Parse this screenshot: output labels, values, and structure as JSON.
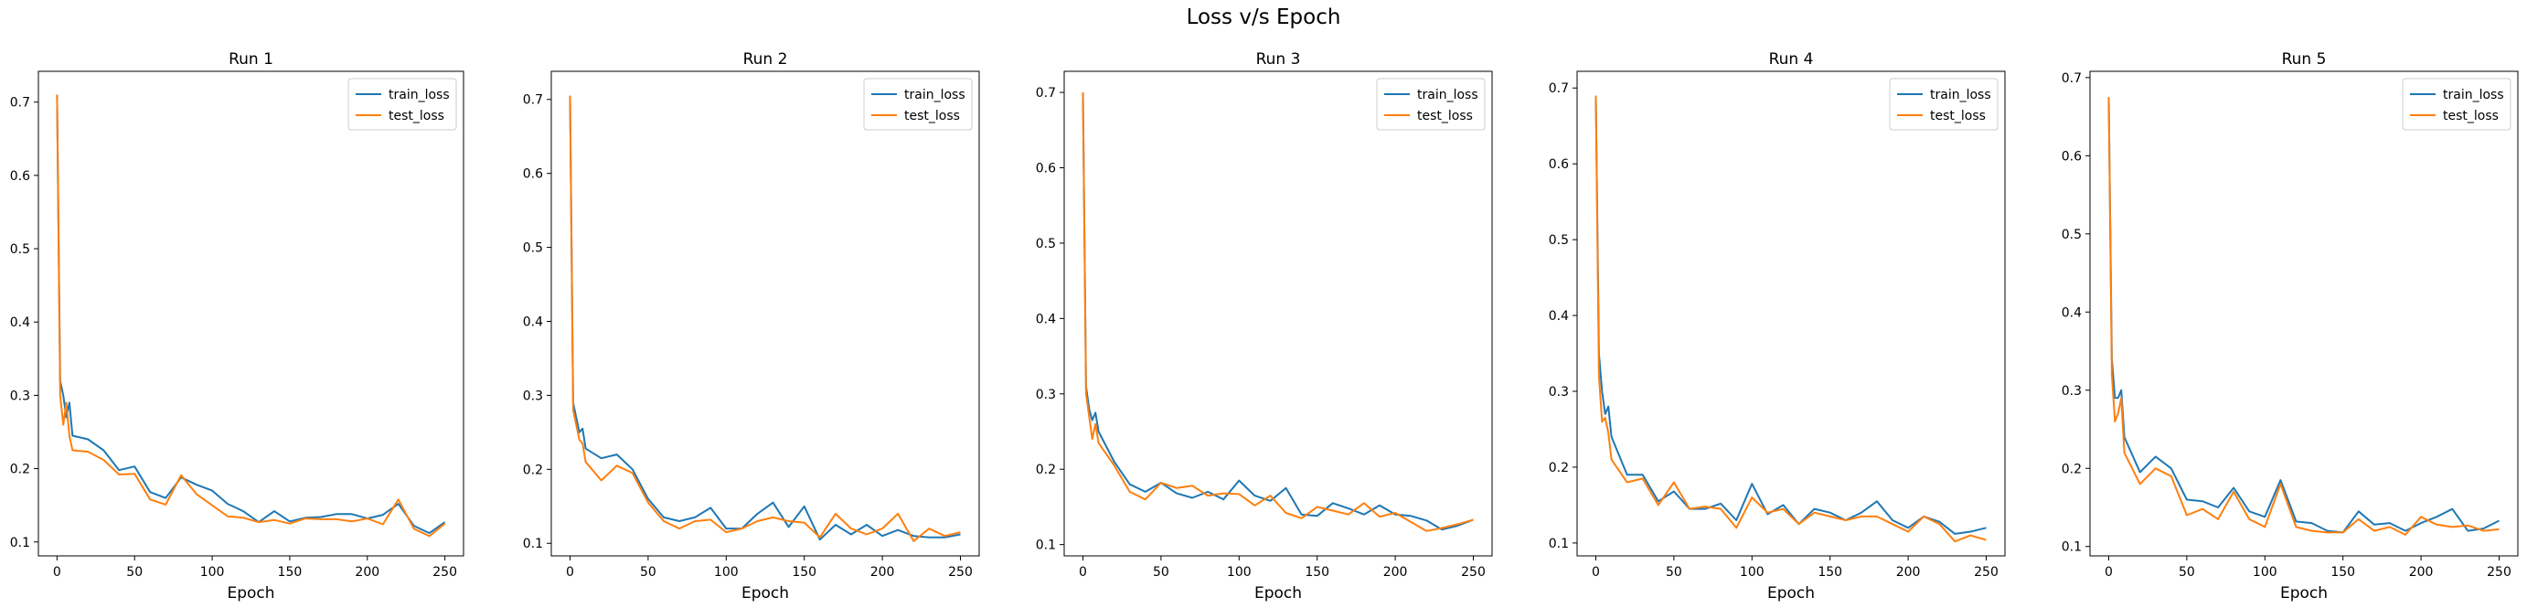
{
  "figure": {
    "title": "Loss v/s Epoch"
  },
  "legend": {
    "position": "upper right"
  },
  "colors": {
    "train_loss": "#1f77b4",
    "test_loss": "#ff7f0e"
  },
  "chart_data": [
    {
      "type": "line",
      "title": "Run 1",
      "xlabel": "Epoch",
      "ylabel": "",
      "xlim": [
        -12,
        262
      ],
      "ylim": [
        0.081,
        0.742
      ],
      "xticks": [
        "0",
        "50",
        "100",
        "150",
        "200",
        "250"
      ],
      "xtick_values": [
        0,
        50,
        100,
        150,
        200,
        250
      ],
      "yticks": [
        "0.1",
        "0.2",
        "0.3",
        "0.4",
        "0.5",
        "0.6",
        "0.7"
      ],
      "ytick_values": [
        0.1,
        0.2,
        0.3,
        0.4,
        0.5,
        0.6,
        0.7
      ],
      "grid": false,
      "x": [
        0,
        2,
        4,
        6,
        8,
        10,
        20,
        30,
        40,
        50,
        60,
        70,
        80,
        90,
        100,
        110,
        120,
        130,
        140,
        150,
        160,
        170,
        180,
        190,
        200,
        210,
        220,
        230,
        240,
        250
      ],
      "series": [
        {
          "name": "train_loss",
          "values": [
            0.71,
            0.32,
            0.3,
            0.27,
            0.29,
            0.245,
            0.24,
            0.225,
            0.198,
            0.203,
            0.168,
            0.16,
            0.188,
            0.178,
            0.17,
            0.152,
            0.142,
            0.127,
            0.142,
            0.128,
            0.133,
            0.134,
            0.138,
            0.138,
            0.132,
            0.137,
            0.152,
            0.122,
            0.112,
            0.127
          ]
        },
        {
          "name": "test_loss",
          "values": [
            0.71,
            0.3,
            0.26,
            0.29,
            0.245,
            0.225,
            0.223,
            0.212,
            0.192,
            0.193,
            0.158,
            0.151,
            0.191,
            0.165,
            0.15,
            0.135,
            0.133,
            0.127,
            0.13,
            0.125,
            0.132,
            0.131,
            0.131,
            0.128,
            0.132,
            0.124,
            0.158,
            0.118,
            0.108,
            0.125
          ]
        }
      ]
    },
    {
      "type": "line",
      "title": "Run 2",
      "xlabel": "Epoch",
      "ylabel": "",
      "xlim": [
        -12,
        262
      ],
      "ylim": [
        0.083,
        0.738
      ],
      "xticks": [
        "0",
        "50",
        "100",
        "150",
        "200",
        "250"
      ],
      "xtick_values": [
        0,
        50,
        100,
        150,
        200,
        250
      ],
      "yticks": [
        "0.1",
        "0.2",
        "0.3",
        "0.4",
        "0.5",
        "0.6",
        "0.7"
      ],
      "ytick_values": [
        0.1,
        0.2,
        0.3,
        0.4,
        0.5,
        0.6,
        0.7
      ],
      "grid": false,
      "x": [
        0,
        2,
        4,
        6,
        8,
        10,
        20,
        30,
        40,
        50,
        60,
        70,
        80,
        90,
        100,
        110,
        120,
        130,
        140,
        150,
        160,
        170,
        180,
        190,
        200,
        210,
        220,
        230,
        240,
        250
      ],
      "series": [
        {
          "name": "train_loss",
          "values": [
            0.705,
            0.29,
            0.27,
            0.25,
            0.255,
            0.228,
            0.215,
            0.22,
            0.2,
            0.16,
            0.135,
            0.13,
            0.135,
            0.148,
            0.12,
            0.12,
            0.14,
            0.155,
            0.122,
            0.15,
            0.105,
            0.125,
            0.112,
            0.125,
            0.11,
            0.118,
            0.11,
            0.108,
            0.108,
            0.112
          ]
        },
        {
          "name": "test_loss",
          "values": [
            0.705,
            0.28,
            0.26,
            0.24,
            0.235,
            0.21,
            0.185,
            0.205,
            0.195,
            0.155,
            0.13,
            0.12,
            0.13,
            0.132,
            0.115,
            0.12,
            0.13,
            0.135,
            0.13,
            0.128,
            0.108,
            0.14,
            0.12,
            0.112,
            0.12,
            0.14,
            0.103,
            0.12,
            0.11,
            0.115
          ]
        }
      ]
    },
    {
      "type": "line",
      "title": "Run 3",
      "xlabel": "Epoch",
      "ylabel": "",
      "xlim": [
        -12,
        262
      ],
      "ylim": [
        0.085,
        0.728
      ],
      "xticks": [
        "0",
        "50",
        "100",
        "150",
        "200",
        "250"
      ],
      "xtick_values": [
        0,
        50,
        100,
        150,
        200,
        250
      ],
      "yticks": [
        "0.1",
        "0.2",
        "0.3",
        "0.4",
        "0.5",
        "0.6",
        "0.7"
      ],
      "ytick_values": [
        0.1,
        0.2,
        0.3,
        0.4,
        0.5,
        0.6,
        0.7
      ],
      "grid": false,
      "x": [
        0,
        2,
        4,
        6,
        8,
        10,
        20,
        30,
        40,
        50,
        60,
        70,
        80,
        90,
        100,
        110,
        120,
        130,
        140,
        150,
        160,
        170,
        180,
        190,
        200,
        210,
        220,
        230,
        240,
        250
      ],
      "series": [
        {
          "name": "train_loss",
          "values": [
            0.7,
            0.31,
            0.28,
            0.265,
            0.275,
            0.25,
            0.21,
            0.18,
            0.17,
            0.182,
            0.168,
            0.162,
            0.17,
            0.16,
            0.185,
            0.165,
            0.158,
            0.175,
            0.14,
            0.138,
            0.155,
            0.148,
            0.14,
            0.152,
            0.14,
            0.138,
            0.132,
            0.12,
            0.125,
            0.133
          ]
        },
        {
          "name": "test_loss",
          "values": [
            0.7,
            0.3,
            0.27,
            0.24,
            0.26,
            0.235,
            0.205,
            0.17,
            0.16,
            0.182,
            0.175,
            0.178,
            0.165,
            0.168,
            0.167,
            0.152,
            0.165,
            0.142,
            0.135,
            0.15,
            0.145,
            0.14,
            0.155,
            0.137,
            0.142,
            0.13,
            0.118,
            0.122,
            0.127,
            0.133
          ]
        }
      ]
    },
    {
      "type": "line",
      "title": "Run 4",
      "xlabel": "Epoch",
      "ylabel": "",
      "xlim": [
        -12,
        262
      ],
      "ylim": [
        0.083,
        0.722
      ],
      "xticks": [
        "0",
        "50",
        "100",
        "150",
        "200",
        "250"
      ],
      "xtick_values": [
        0,
        50,
        100,
        150,
        200,
        250
      ],
      "yticks": [
        "0.1",
        "0.2",
        "0.3",
        "0.4",
        "0.5",
        "0.6",
        "0.7"
      ],
      "ytick_values": [
        0.1,
        0.2,
        0.3,
        0.4,
        0.5,
        0.6,
        0.7
      ],
      "grid": false,
      "x": [
        0,
        2,
        4,
        6,
        8,
        10,
        20,
        30,
        40,
        50,
        60,
        70,
        80,
        90,
        100,
        110,
        120,
        130,
        140,
        150,
        160,
        170,
        180,
        190,
        200,
        210,
        220,
        230,
        240,
        250
      ],
      "series": [
        {
          "name": "train_loss",
          "values": [
            0.69,
            0.35,
            0.3,
            0.27,
            0.28,
            0.24,
            0.19,
            0.19,
            0.155,
            0.168,
            0.145,
            0.145,
            0.152,
            0.13,
            0.178,
            0.138,
            0.15,
            0.125,
            0.145,
            0.14,
            0.13,
            0.14,
            0.155,
            0.13,
            0.12,
            0.135,
            0.128,
            0.112,
            0.115,
            0.12
          ]
        },
        {
          "name": "test_loss",
          "values": [
            0.69,
            0.32,
            0.26,
            0.265,
            0.245,
            0.21,
            0.18,
            0.185,
            0.15,
            0.18,
            0.145,
            0.148,
            0.145,
            0.12,
            0.16,
            0.14,
            0.145,
            0.125,
            0.14,
            0.135,
            0.13,
            0.135,
            0.135,
            0.125,
            0.115,
            0.135,
            0.125,
            0.102,
            0.11,
            0.104
          ]
        }
      ]
    },
    {
      "type": "line",
      "title": "Run 5",
      "xlabel": "Epoch",
      "ylabel": "",
      "xlim": [
        -12,
        262
      ],
      "ylim": [
        0.088,
        0.708
      ],
      "xticks": [
        "0",
        "50",
        "100",
        "150",
        "200",
        "250"
      ],
      "xtick_values": [
        0,
        50,
        100,
        150,
        200,
        250
      ],
      "yticks": [
        "0.1",
        "0.2",
        "0.3",
        "0.4",
        "0.5",
        "0.6",
        "0.7"
      ],
      "ytick_values": [
        0.1,
        0.2,
        0.3,
        0.4,
        0.5,
        0.6,
        0.7
      ],
      "grid": false,
      "x": [
        0,
        2,
        4,
        6,
        8,
        10,
        20,
        30,
        40,
        50,
        60,
        70,
        80,
        90,
        100,
        110,
        120,
        130,
        140,
        150,
        160,
        170,
        180,
        190,
        200,
        210,
        220,
        230,
        240,
        250
      ],
      "series": [
        {
          "name": "train_loss",
          "values": [
            0.675,
            0.34,
            0.29,
            0.29,
            0.3,
            0.24,
            0.195,
            0.215,
            0.2,
            0.16,
            0.158,
            0.15,
            0.175,
            0.145,
            0.138,
            0.185,
            0.132,
            0.13,
            0.12,
            0.118,
            0.145,
            0.128,
            0.13,
            0.12,
            0.13,
            0.138,
            0.148,
            0.12,
            0.123,
            0.133
          ]
        },
        {
          "name": "test_loss",
          "values": [
            0.675,
            0.32,
            0.26,
            0.27,
            0.29,
            0.22,
            0.18,
            0.2,
            0.19,
            0.14,
            0.148,
            0.135,
            0.17,
            0.135,
            0.125,
            0.18,
            0.125,
            0.12,
            0.118,
            0.118,
            0.135,
            0.12,
            0.125,
            0.115,
            0.138,
            0.128,
            0.125,
            0.127,
            0.12,
            0.122
          ]
        }
      ]
    }
  ]
}
